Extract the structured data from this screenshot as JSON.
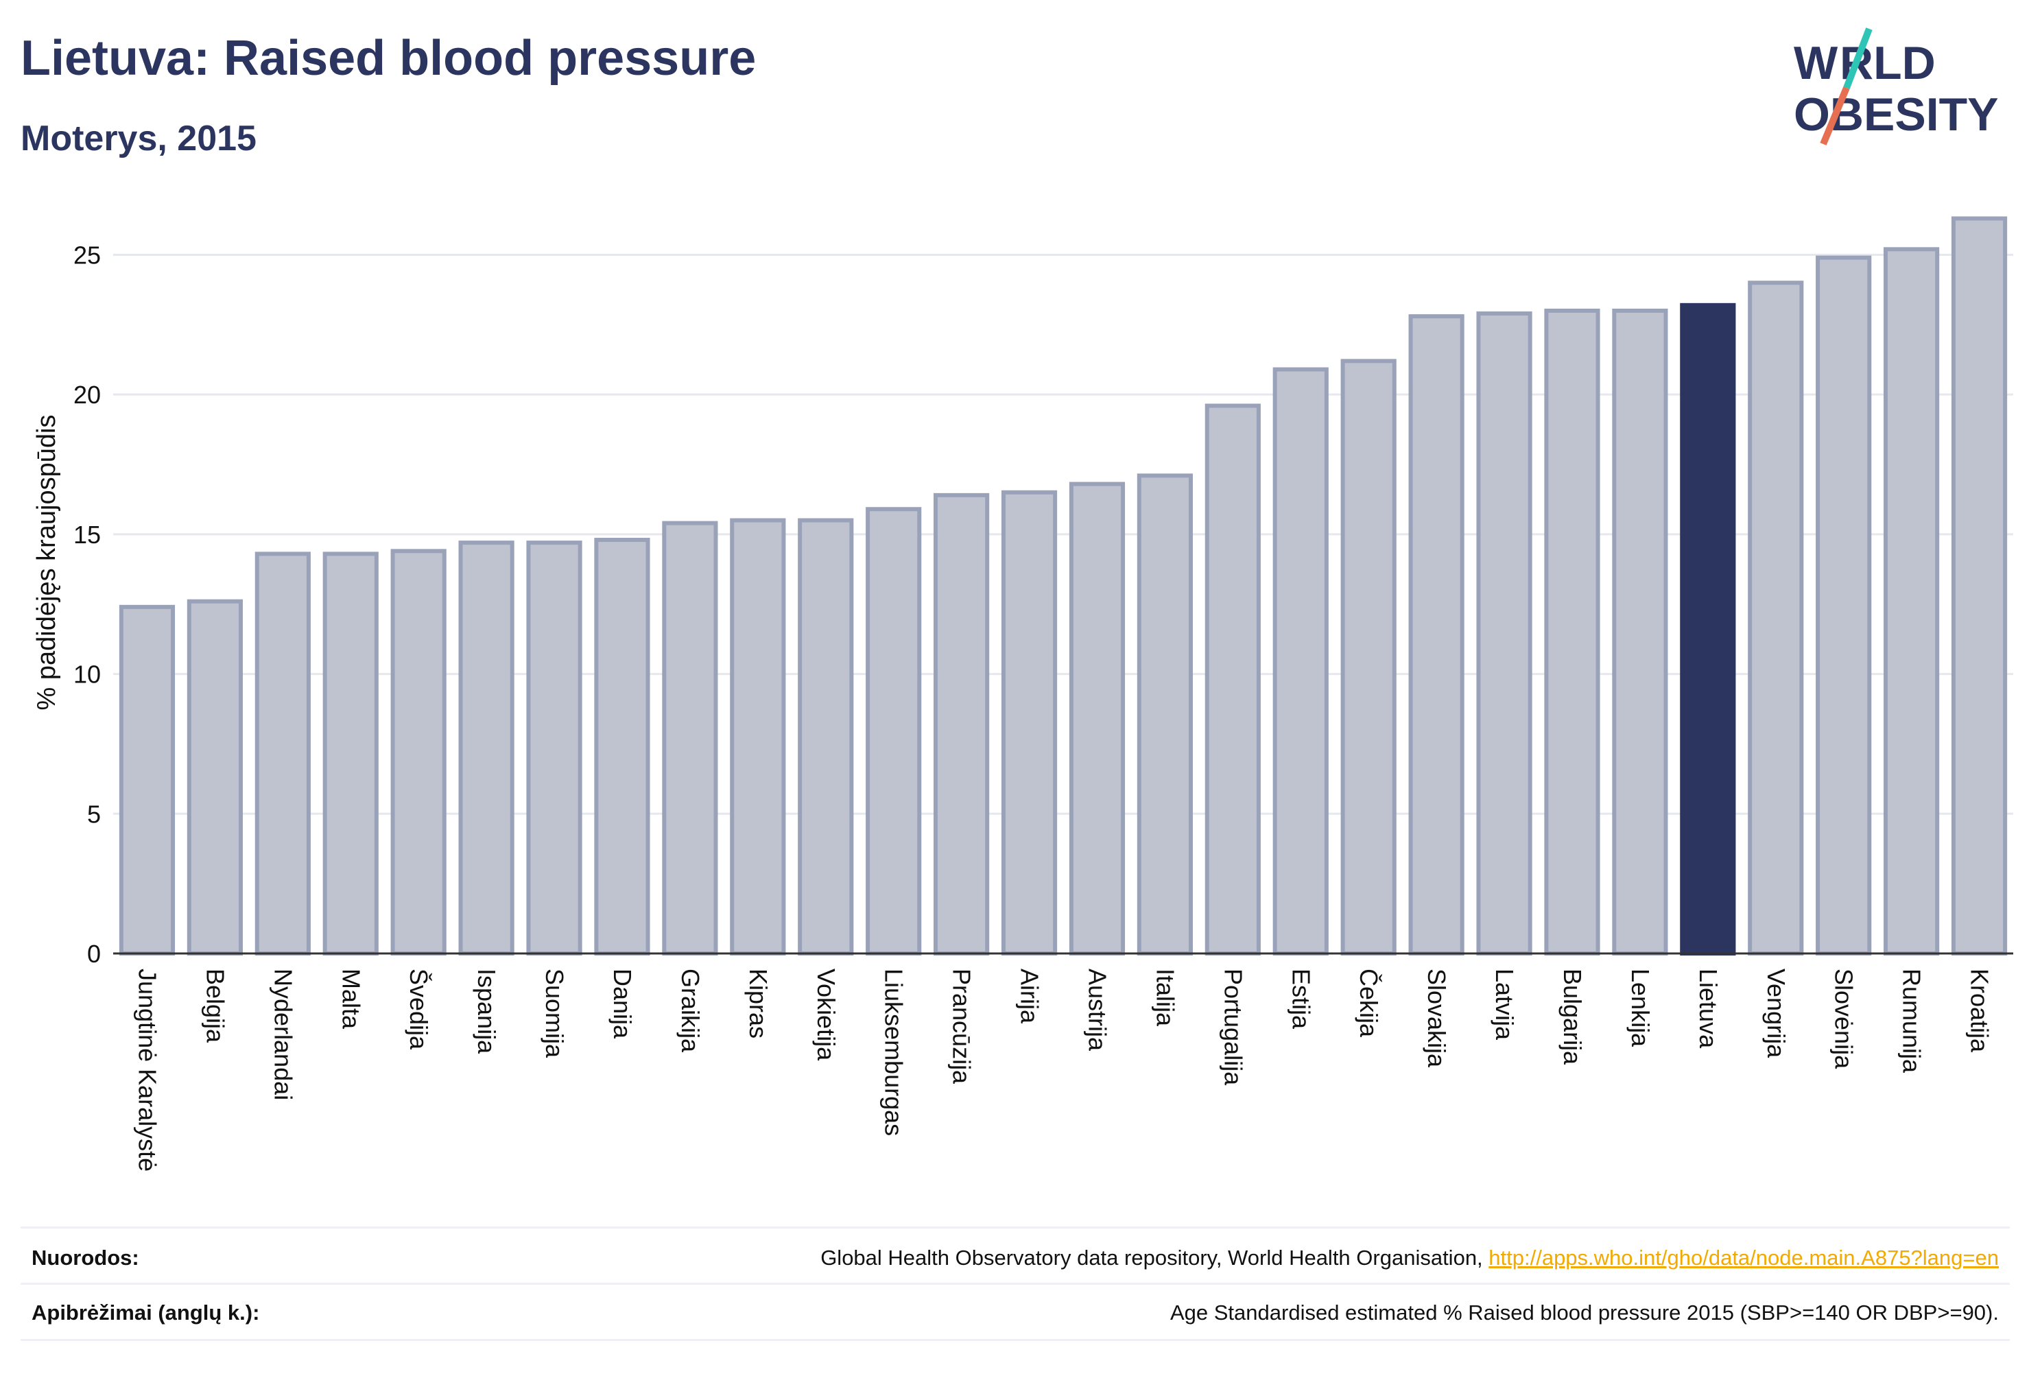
{
  "header": {
    "title": "Lietuva: Raised blood pressure",
    "subtitle": "Moterys, 2015"
  },
  "logo": {
    "line1": "WORLD",
    "line2": "OBESITY"
  },
  "colors": {
    "highlight": "#2b3560",
    "bar_fill": "#bfc3d0",
    "bar_stroke": "#9aa2b9",
    "accent_teal": "#2ec4b6",
    "accent_red": "#e76f51"
  },
  "chart_data": {
    "type": "bar",
    "ylabel": "% padidėjęs kraujospūdis",
    "ylim": [
      0,
      27
    ],
    "yticks": [
      0,
      5,
      10,
      15,
      20,
      25
    ],
    "grid": true,
    "highlight": "Lietuva",
    "categories": [
      "Jungtinė Karalystė",
      "Belgija",
      "Nyderlandai",
      "Malta",
      "Švedija",
      "Ispanija",
      "Suomija",
      "Danija",
      "Graikija",
      "Kipras",
      "Vokietija",
      "Liuksemburgas",
      "Prancūzija",
      "Airija",
      "Austrija",
      "Italija",
      "Portugalija",
      "Estija",
      "Čekija",
      "Slovakija",
      "Latvija",
      "Bulgarija",
      "Lenkija",
      "Lietuva",
      "Vengrija",
      "Slovėnija",
      "Rumunija",
      "Kroatija"
    ],
    "values": [
      12.4,
      12.6,
      14.3,
      14.3,
      14.4,
      14.7,
      14.7,
      14.8,
      15.4,
      15.5,
      15.5,
      15.9,
      16.4,
      16.5,
      16.8,
      17.1,
      19.6,
      20.9,
      21.2,
      22.8,
      22.9,
      23.0,
      23.0,
      23.2,
      24.0,
      24.9,
      25.2,
      26.3
    ]
  },
  "footer": {
    "sources_label": "Nuorodos:",
    "sources_text": "Global Health Observatory data repository, World Health Organisation, ",
    "sources_link": "http://apps.who.int/gho/data/node.main.A875?lang=en",
    "definitions_label": "Apibrėžimai (anglų k.):",
    "definitions_text": "Age Standardised estimated % Raised blood pressure 2015 (SBP>=140 OR DBP>=90)."
  }
}
